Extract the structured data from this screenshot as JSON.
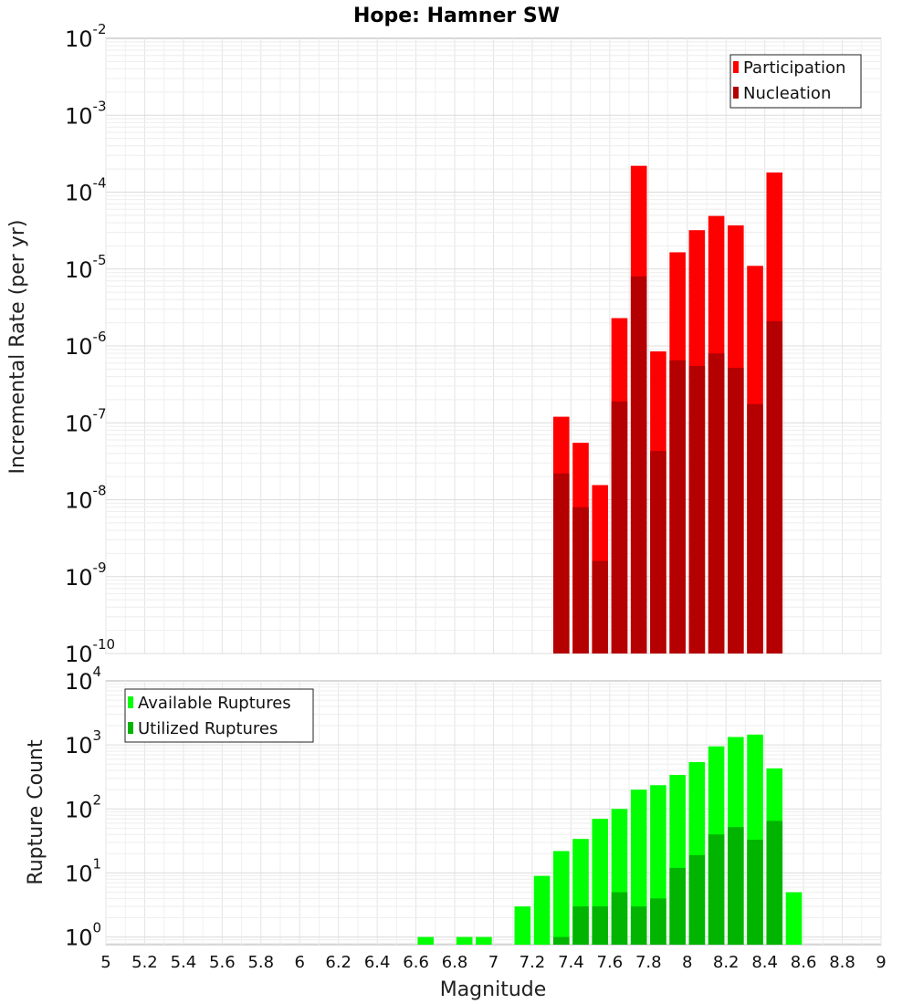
{
  "title": "Hope: Hamner SW",
  "chart_data": [
    {
      "type": "bar",
      "scale": "log",
      "ylabel": "Incremental Rate (per yr)",
      "xlabel": "",
      "xlim": [
        5,
        9
      ],
      "ylim_exp": [
        -10,
        -2
      ],
      "y_ticks": [
        "10|-2",
        "10|-3",
        "10|-4",
        "10|-5",
        "10|-6",
        "10|-7",
        "10|-8",
        "10|-9",
        "10|-10"
      ],
      "grid": true,
      "legend_position": "top-right",
      "x": [
        7.35,
        7.45,
        7.55,
        7.65,
        7.75,
        7.85,
        7.95,
        8.05,
        8.15,
        8.25,
        8.35,
        8.45
      ],
      "series": [
        {
          "name": "Participation",
          "color": "#ff0000",
          "values": [
            1.2e-07,
            5.5e-08,
            1.55e-08,
            2.3e-06,
            0.00022,
            8.5e-07,
            1.65e-05,
            3.2e-05,
            4.9e-05,
            3.7e-05,
            1.1e-05,
            0.00018
          ]
        },
        {
          "name": "Nucleation",
          "color": "#b40000",
          "values": [
            2.2e-08,
            8e-09,
            1.6e-09,
            1.9e-07,
            8e-06,
            4.3e-08,
            6.5e-07,
            5.5e-07,
            8e-07,
            5.2e-07,
            1.75e-07,
            2.1e-06
          ]
        }
      ]
    },
    {
      "type": "bar",
      "scale": "log",
      "ylabel": "Rupture Count",
      "xlabel": "Magnitude",
      "xlim": [
        5,
        9
      ],
      "ylim_exp": [
        -0.12,
        4
      ],
      "y_ticks": [
        "10|4",
        "10|3",
        "10|2",
        "10|1",
        "10|0"
      ],
      "x_ticks": [
        "5",
        "5.2",
        "5.4",
        "5.6",
        "5.8",
        "6",
        "6.2",
        "6.4",
        "6.6",
        "6.8",
        "7",
        "7.2",
        "7.4",
        "7.6",
        "7.8",
        "8",
        "8.2",
        "8.4",
        "8.6",
        "8.8",
        "9"
      ],
      "grid": true,
      "legend_position": "top-left",
      "x": [
        6.65,
        6.85,
        6.95,
        7.15,
        7.25,
        7.35,
        7.45,
        7.55,
        7.65,
        7.75,
        7.85,
        7.95,
        8.05,
        8.15,
        8.25,
        8.35,
        8.45,
        8.55
      ],
      "series": [
        {
          "name": "Available Ruptures",
          "color": "#00ff00",
          "values": [
            1,
            1,
            1,
            3,
            9,
            22,
            34,
            70,
            100,
            200,
            235,
            340,
            540,
            950,
            1330,
            1450,
            430,
            5
          ]
        },
        {
          "name": "Utilized Ruptures",
          "color": "#00b400",
          "values": [
            0,
            0,
            0,
            0,
            0,
            1,
            3,
            3,
            5,
            3,
            4,
            12,
            19,
            40,
            52,
            33,
            65,
            0
          ]
        }
      ]
    }
  ]
}
